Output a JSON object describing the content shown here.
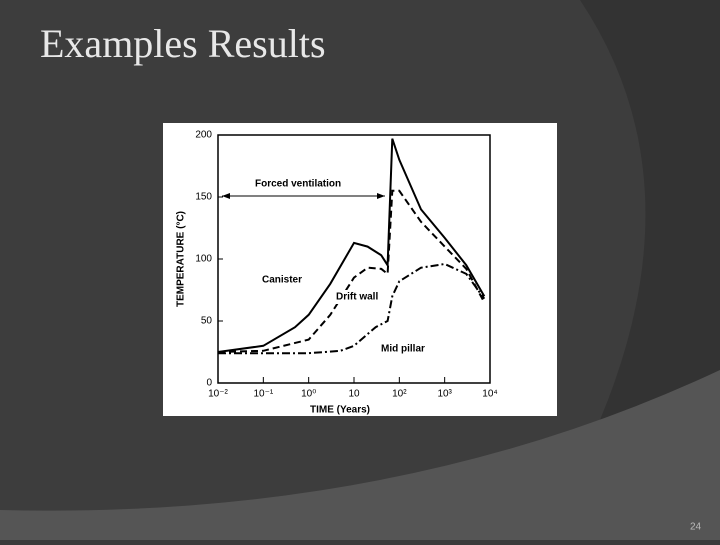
{
  "slide": {
    "title": "Examples Results",
    "page_number": "24"
  },
  "chart_data": {
    "type": "line",
    "xlabel": "TIME (Years)",
    "ylabel": "TEMPERATURE (°C)",
    "annotation": "Forced ventilation",
    "xscale": "log",
    "xlim": [
      0.01,
      10000
    ],
    "ylim": [
      0,
      200
    ],
    "xticks": [
      {
        "value": 0.01,
        "label": "10⁻²"
      },
      {
        "value": 0.1,
        "label": "10⁻¹"
      },
      {
        "value": 1,
        "label": "10⁰"
      },
      10,
      {
        "value": 100,
        "label": "10²"
      },
      {
        "value": 1000,
        "label": "10³"
      },
      {
        "value": 10000,
        "label": "10⁴"
      }
    ],
    "yticks": [
      0,
      50,
      100,
      150,
      200
    ],
    "series": [
      {
        "name": "Canister",
        "color": "#000000",
        "dash": "none",
        "x": [
          0.01,
          0.1,
          0.5,
          1,
          3,
          10,
          20,
          40,
          55,
          70,
          100,
          300,
          1000,
          3000,
          7500
        ],
        "values": [
          25,
          30,
          45,
          55,
          80,
          113,
          110,
          103,
          95,
          197,
          180,
          140,
          117,
          95,
          70
        ]
      },
      {
        "name": "Drift wall",
        "color": "#000000",
        "dash": "7 4",
        "x": [
          0.01,
          0.1,
          1,
          3,
          10,
          20,
          40,
          55,
          70,
          100,
          300,
          1000,
          3000,
          7500
        ],
        "values": [
          25,
          26,
          35,
          55,
          85,
          93,
          92,
          88,
          155,
          155,
          130,
          110,
          92,
          65
        ]
      },
      {
        "name": "Mid pillar",
        "color": "#000000",
        "dash": "8 3 2 3",
        "x": [
          0.01,
          1,
          5,
          10,
          30,
          55,
          70,
          100,
          300,
          1000,
          3000,
          7500
        ],
        "values": [
          24,
          24,
          26,
          30,
          45,
          50,
          70,
          82,
          93,
          96,
          88,
          68
        ]
      }
    ]
  }
}
